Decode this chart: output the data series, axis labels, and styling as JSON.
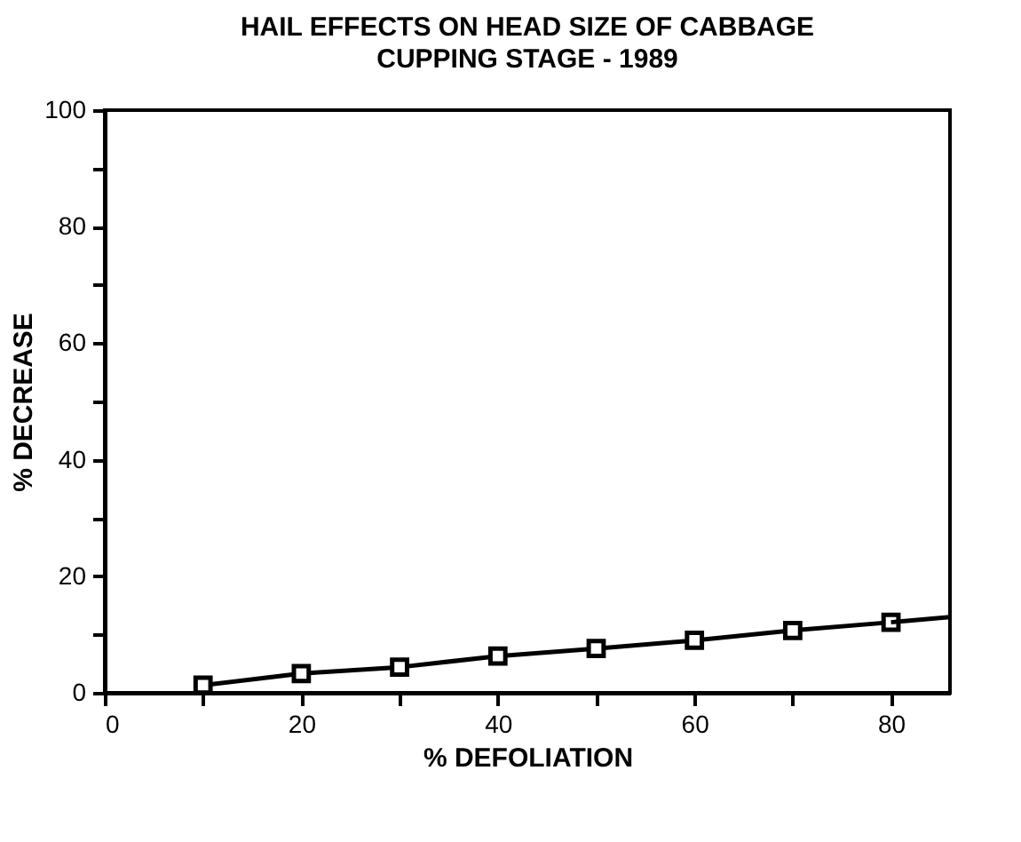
{
  "chart_data": {
    "type": "line",
    "title": "HAIL EFFECTS ON HEAD SIZE OF CABBAGE",
    "subtitle": "CUPPING STAGE - 1989",
    "xlabel": "% DEFOLIATION",
    "ylabel": "% DECREASE",
    "xlim": [
      0,
      86
    ],
    "ylim": [
      0,
      100
    ],
    "xticks": [
      0,
      {
        "value": 10,
        "label": null
      },
      20,
      {
        "value": 30,
        "label": null
      },
      40,
      {
        "value": 50,
        "label": null
      },
      60,
      {
        "value": 70,
        "label": null
      },
      80
    ],
    "yticks": [
      0,
      {
        "value": 10,
        "label": null
      },
      20,
      {
        "value": 30,
        "label": null
      },
      40,
      {
        "value": 50,
        "label": null
      },
      60,
      {
        "value": 70,
        "label": null
      },
      80,
      {
        "value": 90,
        "label": null
      },
      100
    ],
    "grid": false,
    "series": [
      {
        "color": "#000000",
        "marker": "square",
        "x": [
          10,
          20,
          30,
          40,
          50,
          60,
          70,
          80
        ],
        "values": [
          1.3,
          3.3,
          4.4,
          6.3,
          7.6,
          9.0,
          10.7,
          12.1
        ]
      },
      {
        "color": "#000000",
        "marker": "none",
        "x": [
          80,
          86
        ],
        "values": [
          12.1,
          13.0
        ]
      }
    ]
  }
}
